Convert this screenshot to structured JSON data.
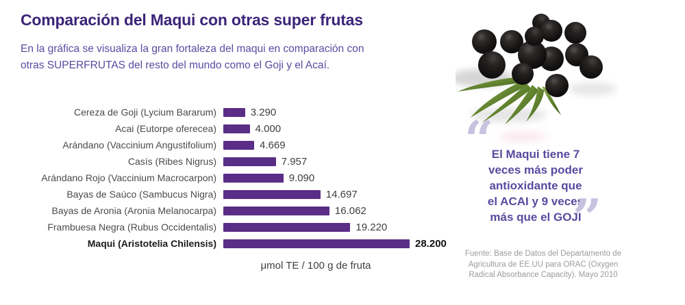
{
  "header": {
    "title": "Comparación del Maqui con otras super frutas",
    "subtitle_lines": [
      "En la gráfica se visualiza la gran fortaleza del maqui en comparación con",
      "otras SUPERFRUTAS del resto del mundo como el Goji y el Acaí."
    ]
  },
  "chart_data": {
    "type": "bar",
    "orientation": "horizontal",
    "categories": [
      "Cereza de Goji (Lycium Bararum)",
      "Acai (Eutorpe oferecea)",
      "Arándano (Vaccinium Angustifolium)",
      "Casís (Ribes Nigrus)",
      "Arándano Rojo (Vaccinium Macrocarpon)",
      "Bayas de Saúco (Sambucus Nigra)",
      "Bayas de Aronia (Aronia Melanocarpa)",
      "Frambuesa Negra (Rubus Occidentalis)",
      "Maqui (Aristotelia Chilensis)"
    ],
    "values": [
      3290,
      4000,
      4669,
      7957,
      9090,
      14697,
      16062,
      19220,
      28200
    ],
    "value_labels": [
      "3.290",
      "4.000",
      "4.669",
      "7.957",
      "9.090",
      "14.697",
      "16.062",
      "19.220",
      "28.200"
    ],
    "emphasized_index": 8,
    "xlabel": "μmol TE / 100 g de fruta",
    "xlim": [
      0,
      28200
    ],
    "bar_color": "#5a2d87",
    "grid": false,
    "legend": false
  },
  "quote": {
    "open_mark": "“",
    "close_mark": "”",
    "lines": [
      "El Maqui tiene 7",
      "veces más poder",
      "antioxidante que",
      "el ACAI y 9 veces",
      "más que el GOJI"
    ]
  },
  "source": {
    "lines": [
      "Fuente: Base de Datos del Departamento de",
      "Agricultura de EE.UU para ORAC (Oxygen",
      "Radical Absorbance Capacity). Mayo 2010"
    ]
  },
  "colors": {
    "title": "#3b2478",
    "subtitle": "#5a4aa0",
    "bar": "#5a2d87",
    "category_label": "#4a4a4a",
    "value_label": "#3e3e3e",
    "quote_text": "#584a9e",
    "quote_mark": "#c8c2df",
    "source_text": "#9b9b9b"
  }
}
